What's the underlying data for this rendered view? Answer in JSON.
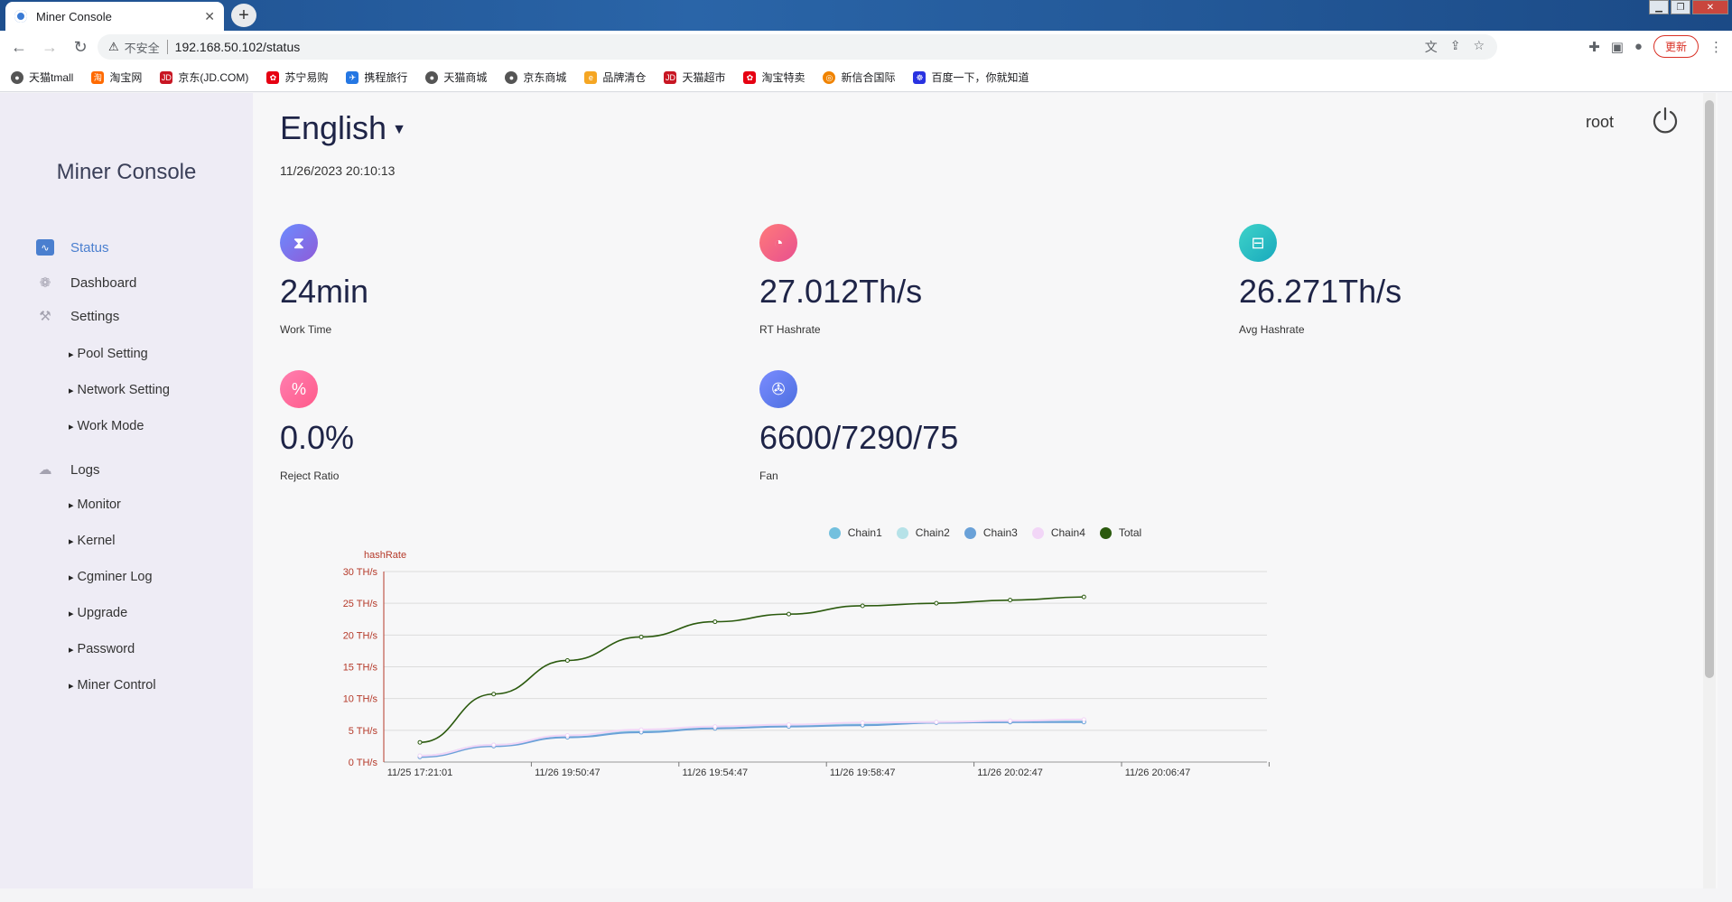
{
  "browser": {
    "tab_title": "Miner Console",
    "insecure_label": "不安全",
    "url": "192.168.50.102/status",
    "update_label": "更新",
    "bookmarks": [
      "天猫tmall",
      "淘宝网",
      "京东(JD.COM)",
      "苏宁易购",
      "携程旅行",
      "天猫商城",
      "京东商城",
      "品牌清仓",
      "天猫超市",
      "淘宝特卖",
      "新信合国际",
      "百度一下，你就知道"
    ]
  },
  "sidebar": {
    "brand": "Miner Console",
    "items": [
      {
        "label": "Status"
      },
      {
        "label": "Dashboard"
      },
      {
        "label": "Settings"
      },
      {
        "label": "Logs"
      }
    ],
    "settings_sub": [
      "Pool Setting",
      "Network Setting",
      "Work Mode"
    ],
    "logs_sub": [
      "Monitor",
      "Kernel",
      "Cgminer Log",
      "Upgrade",
      "Password",
      "Miner Control"
    ]
  },
  "header": {
    "language": "English",
    "datetime": "11/26/2023 20:10:13",
    "user": "root"
  },
  "stats": {
    "work_time": {
      "value": "24min",
      "label": "Work Time"
    },
    "rt_hashrate": {
      "value": "27.012Th/s",
      "label": "RT Hashrate"
    },
    "avg_hashrate": {
      "value": "26.271Th/s",
      "label": "Avg Hashrate"
    },
    "reject_ratio": {
      "value": "0.0%",
      "label": "Reject Ratio"
    },
    "fan": {
      "value": "6600/7290/75",
      "label": "Fan"
    }
  },
  "chart_data": {
    "type": "line",
    "ylabel": "hashRate",
    "ylim": [
      0,
      30
    ],
    "yticks": [
      "0 TH/s",
      "5 TH/s",
      "10 TH/s",
      "15 TH/s",
      "20 TH/s",
      "25 TH/s",
      "30 TH/s"
    ],
    "xtick_labels": [
      "11/25 17:21:01",
      "11/26 19:50:47",
      "11/26 19:54:47",
      "11/26 19:58:47",
      "11/26 20:02:47",
      "11/26 20:06:47"
    ],
    "grid": true,
    "legend_position": "top",
    "series": [
      {
        "name": "Chain1",
        "color": "#73c0de",
        "values": [
          0.9,
          2.6,
          4.0,
          4.9,
          5.4,
          5.7,
          5.9,
          6.2,
          6.3,
          6.4
        ]
      },
      {
        "name": "Chain2",
        "color": "#b6e2e8",
        "values": [
          1.0,
          2.7,
          4.1,
          5.0,
          5.5,
          5.8,
          6.1,
          6.3,
          6.4,
          6.6
        ]
      },
      {
        "name": "Chain3",
        "color": "#6aa1d8",
        "values": [
          0.8,
          2.5,
          3.9,
          4.7,
          5.3,
          5.6,
          5.8,
          6.2,
          6.3,
          6.3
        ]
      },
      {
        "name": "Chain4",
        "color": "#f2d6f7",
        "values": [
          1.0,
          2.7,
          4.2,
          5.1,
          5.6,
          5.9,
          6.2,
          6.3,
          6.5,
          6.7
        ]
      },
      {
        "name": "Total",
        "color": "#2b5a0e",
        "values": [
          3.1,
          10.7,
          16.0,
          19.7,
          22.1,
          23.3,
          24.6,
          25.0,
          25.5,
          26.0
        ]
      }
    ]
  }
}
